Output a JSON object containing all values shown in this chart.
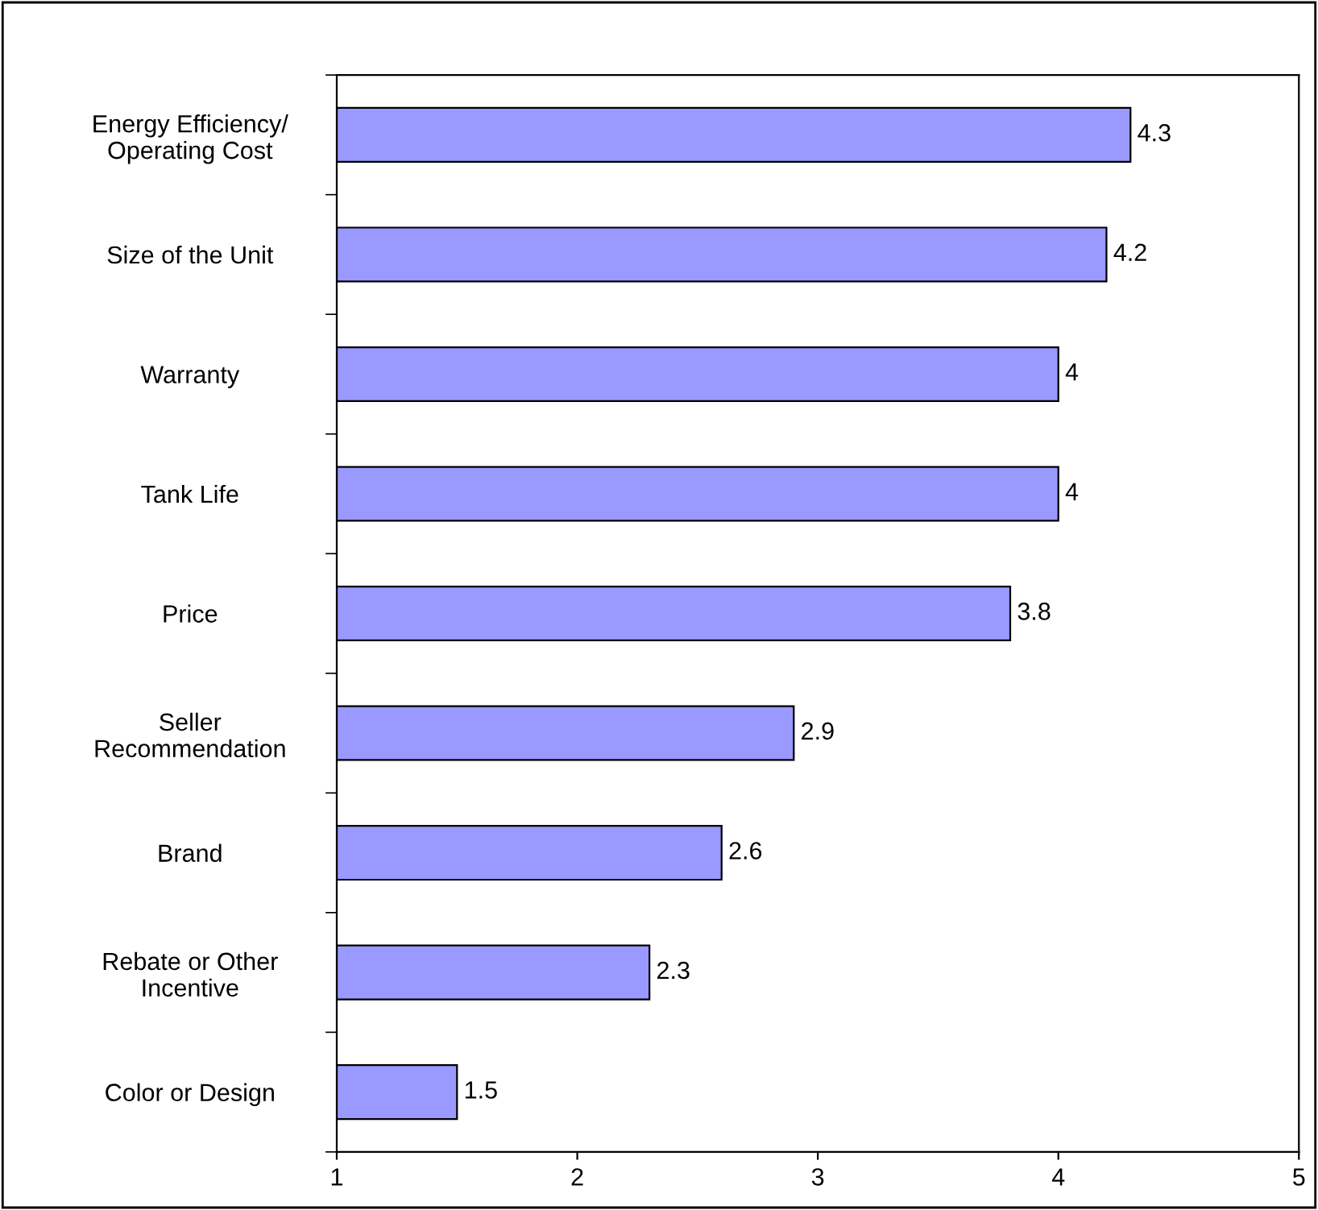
{
  "chart_data": {
    "type": "bar",
    "orientation": "horizontal",
    "categories": [
      "Energy Efficiency/\nOperating Cost",
      "Size of the Unit",
      "Warranty",
      "Tank Life",
      "Price",
      "Seller\nRecommendation",
      "Brand",
      "Rebate or Other\nIncentive",
      "Color or Design"
    ],
    "values": [
      4.3,
      4.2,
      4,
      4,
      3.8,
      2.9,
      2.6,
      2.3,
      1.5
    ],
    "color": "#9999ff",
    "xlim": [
      1,
      5
    ],
    "xticks": [
      1,
      2,
      3,
      4,
      5
    ],
    "data_labels": true,
    "grid": false,
    "legend": false
  }
}
